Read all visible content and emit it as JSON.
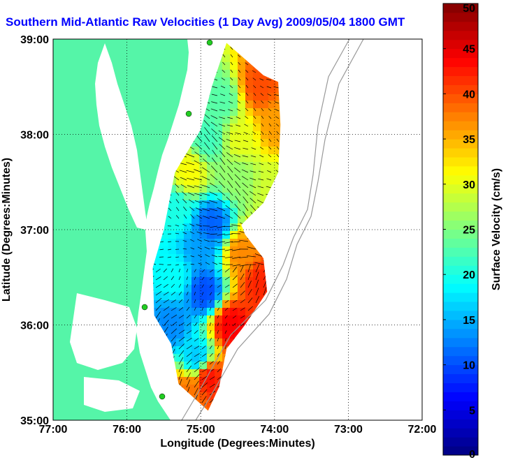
{
  "title": "Southern Mid-Atlantic Raw Velocities (1 Day Avg) 2009/05/04 1800 GMT",
  "chart_data": {
    "type": "heatmap",
    "title": "Southern Mid-Atlantic Raw Velocities (1 Day Avg) 2009/05/04 1800 GMT",
    "xlabel": "Longitude (Degrees:Minutes)",
    "ylabel": "Latitude (Degrees:Minutes)",
    "xlim": [
      -77,
      -72
    ],
    "ylim": [
      35,
      39
    ],
    "x_ticks": [
      {
        "value": -77,
        "label": "77:00"
      },
      {
        "value": -76,
        "label": "76:00"
      },
      {
        "value": -75,
        "label": "75:00"
      },
      {
        "value": -74,
        "label": "74:00"
      },
      {
        "value": -73,
        "label": "73:00"
      },
      {
        "value": -72,
        "label": "72:00"
      }
    ],
    "y_ticks": [
      {
        "value": 35,
        "label": "35:00"
      },
      {
        "value": 36,
        "label": "36:00"
      },
      {
        "value": 37,
        "label": "37:00"
      },
      {
        "value": 38,
        "label": "38:00"
      },
      {
        "value": 39,
        "label": "39:00"
      }
    ],
    "grid": true,
    "colorbar": {
      "label": "Surface Velocity (cm/s)",
      "min": 0,
      "max": 50,
      "ticks": [
        0,
        5,
        10,
        15,
        20,
        25,
        30,
        35,
        40,
        45,
        50
      ],
      "colormap": "jet"
    },
    "land_color": "#55f5a8",
    "coverage_outline": [
      [
        -74.65,
        38.96
      ],
      [
        -74.15,
        38.62
      ],
      [
        -73.95,
        38.55
      ],
      [
        -73.92,
        38.1
      ],
      [
        -73.95,
        37.6
      ],
      [
        -74.15,
        37.28
      ],
      [
        -74.45,
        37.05
      ],
      [
        -74.4,
        36.95
      ],
      [
        -74.15,
        36.7
      ],
      [
        -74.1,
        36.35
      ],
      [
        -74.4,
        36.0
      ],
      [
        -74.65,
        35.75
      ],
      [
        -74.75,
        35.35
      ],
      [
        -74.9,
        35.1
      ],
      [
        -75.3,
        35.38
      ],
      [
        -75.4,
        35.8
      ],
      [
        -75.63,
        36.1
      ],
      [
        -75.65,
        36.6
      ],
      [
        -75.5,
        37.0
      ],
      [
        -75.35,
        37.6
      ],
      [
        -75.0,
        38.05
      ],
      [
        -74.85,
        38.5
      ]
    ],
    "speed_regions": [
      {
        "lon": -74.72,
        "lat": 38.35,
        "speed": 23
      },
      {
        "lon": -74.2,
        "lat": 38.5,
        "speed": 40
      },
      {
        "lon": -74.0,
        "lat": 38.1,
        "speed": 36
      },
      {
        "lon": -74.45,
        "lat": 37.95,
        "speed": 30
      },
      {
        "lon": -74.9,
        "lat": 37.95,
        "speed": 22
      },
      {
        "lon": -75.15,
        "lat": 37.6,
        "speed": 31
      },
      {
        "lon": -74.5,
        "lat": 37.55,
        "speed": 26
      },
      {
        "lon": -74.0,
        "lat": 37.45,
        "speed": 29
      },
      {
        "lon": -75.35,
        "lat": 37.2,
        "speed": 20
      },
      {
        "lon": -74.85,
        "lat": 37.05,
        "speed": 11
      },
      {
        "lon": -75.0,
        "lat": 36.8,
        "speed": 14
      },
      {
        "lon": -74.45,
        "lat": 36.75,
        "speed": 37
      },
      {
        "lon": -74.2,
        "lat": 36.45,
        "speed": 42
      },
      {
        "lon": -75.35,
        "lat": 36.5,
        "speed": 19
      },
      {
        "lon": -74.95,
        "lat": 36.35,
        "speed": 10
      },
      {
        "lon": -75.4,
        "lat": 36.0,
        "speed": 13
      },
      {
        "lon": -74.6,
        "lat": 36.0,
        "speed": 44
      },
      {
        "lon": -75.05,
        "lat": 35.65,
        "speed": 16
      },
      {
        "lon": -74.9,
        "lat": 35.45,
        "speed": 43
      },
      {
        "lon": -75.2,
        "lat": 35.3,
        "speed": 38
      }
    ]
  }
}
